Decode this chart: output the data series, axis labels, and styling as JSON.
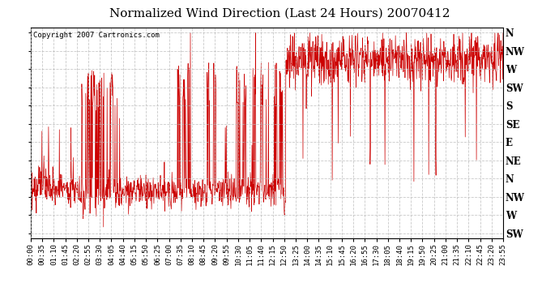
{
  "title": "Normalized Wind Direction (Last 24 Hours) 20070412",
  "copyright_text": "Copyright 2007 Cartronics.com",
  "background_color": "#ffffff",
  "plot_bg_color": "#ffffff",
  "line_color": "#cc0000",
  "grid_color": "#bbbbbb",
  "y_labels": [
    "SW",
    "W",
    "NW",
    "N",
    "NE",
    "E",
    "SE",
    "S",
    "SW",
    "W",
    "NW",
    "N"
  ],
  "y_ticks": [
    0,
    1,
    2,
    3,
    4,
    5,
    6,
    7,
    8,
    9,
    10,
    11
  ],
  "ylim": [
    -0.3,
    11.3
  ],
  "x_tick_interval_minutes": 35,
  "total_minutes": 1435,
  "title_fontsize": 11,
  "axis_fontsize": 7,
  "copyright_fontsize": 6.5
}
